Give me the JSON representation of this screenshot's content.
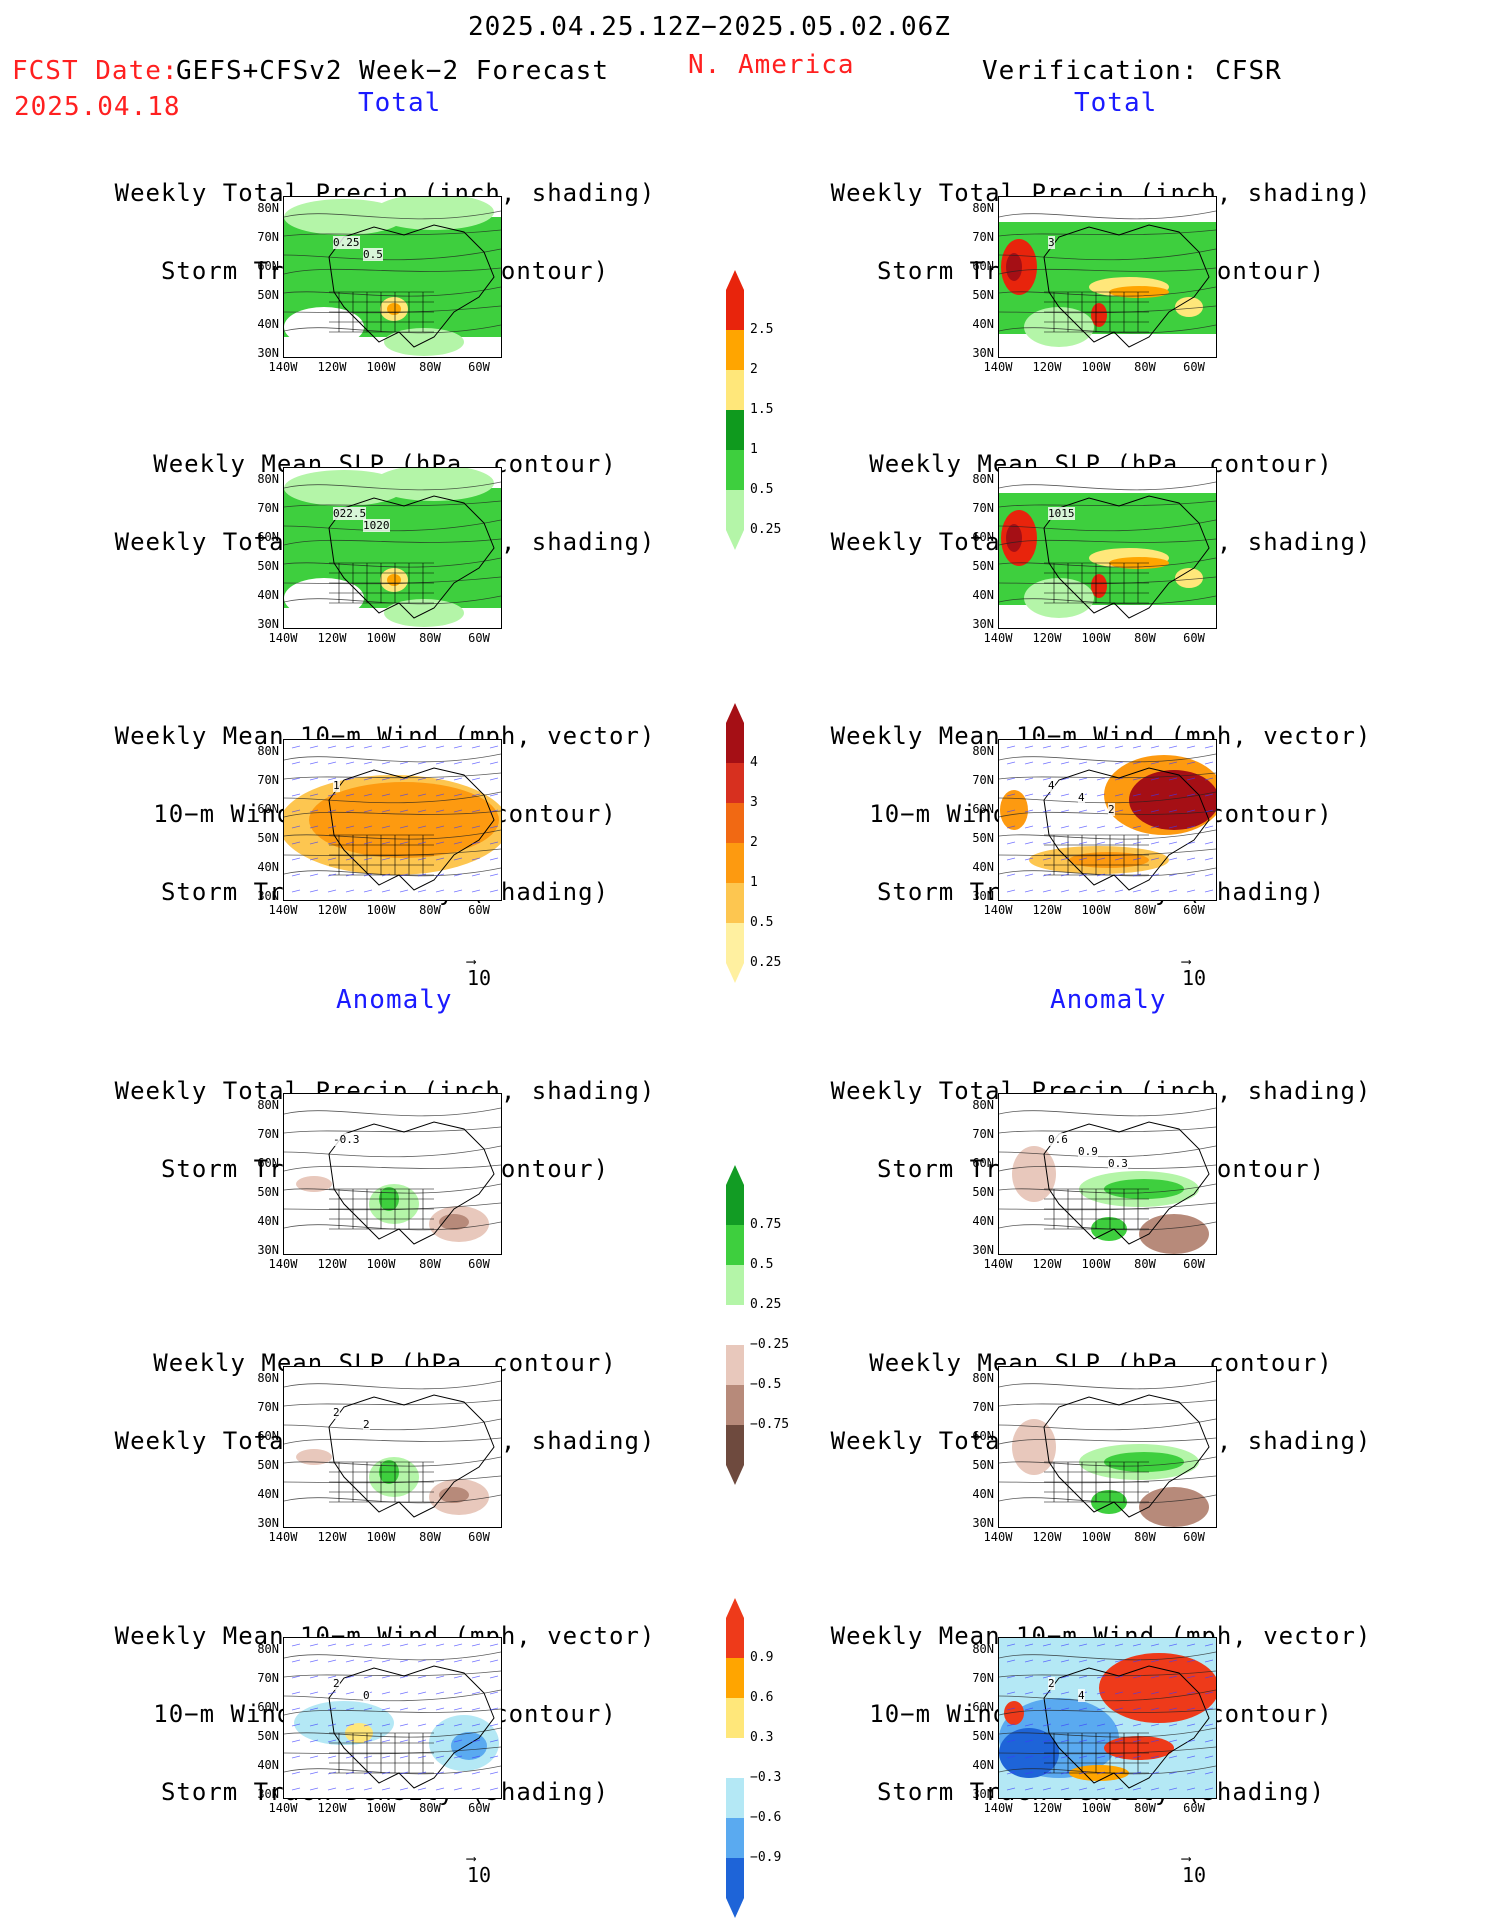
{
  "header": {
    "time_range": "2025.04.25.12Z−2025.05.02.06Z",
    "fcst_date_label": "FCST Date:",
    "model": "GEFS+CFSv2 Week−2 Forecast",
    "fcst_date": "2025.04.18",
    "region": "N. America",
    "verification": "Verification: CFSR"
  },
  "sections": {
    "total": "Total",
    "anomaly": "Anomaly"
  },
  "titles": {
    "precip_storm": [
      "Weekly Total Precip (inch, shading)",
      "Storm Track Density (contour)"
    ],
    "slp_precip": [
      "Weekly Mean SLP (hPa, contour)",
      "Weekly Total Precip (inch, shading)"
    ],
    "wind_storm": [
      "Weekly Mean 10−m Wind (mph, vector)",
      "10−m Wind Speed (mph, contour)",
      "Storm Track Density (shading)"
    ]
  },
  "axes": {
    "lat_ticks": [
      "80N",
      "70N",
      "60N",
      "50N",
      "40N",
      "30N"
    ],
    "lon_ticks": [
      "140W",
      "120W",
      "100W",
      "80W",
      "60W"
    ]
  },
  "contour_labels": {
    "p1_left": [
      "0.25",
      "0.5"
    ],
    "p1_right": [
      "3"
    ],
    "p2_left": [
      "022.5",
      "1020"
    ],
    "p2_right": [
      "1015"
    ],
    "p3_right": [
      "4",
      "4",
      "2"
    ],
    "p3_left": [
      "1"
    ],
    "p4_left": [
      "-0.3"
    ],
    "p4_right": [
      "0.6",
      "0.9",
      "0.3"
    ],
    "p5_left": [
      "2",
      "2"
    ],
    "p6_left": [
      "2",
      "0"
    ],
    "p6_right": [
      "2",
      "4"
    ]
  },
  "vector_reference": "10",
  "colorbars": {
    "precip_total": {
      "labels": [
        "2.5",
        "2",
        "1.5",
        "1",
        "0.5",
        "0.25"
      ],
      "colors": [
        "#e8240c",
        "#ffa500",
        "#ffe77a",
        "#0f9a1e",
        "#3ecf3e",
        "#b4f5a8"
      ]
    },
    "storm_total": {
      "labels": [
        "4",
        "3",
        "2",
        "1",
        "0.5",
        "0.25"
      ],
      "colors": [
        "#a50f15",
        "#d7301f",
        "#f16913",
        "#fd9a10",
        "#fdc650",
        "#fff0a0"
      ]
    },
    "precip_anom": {
      "labels": [
        "0.75",
        "0.5",
        "0.25",
        "−0.25",
        "−0.5",
        "−0.75"
      ],
      "colors": [
        "#129c24",
        "#3ecf3e",
        "#b4f5a8",
        "#ffffff",
        "#e8c8bc",
        "#b78a7a",
        "#6e4a3e"
      ]
    },
    "storm_anom": {
      "labels": [
        "0.9",
        "0.6",
        "0.3",
        "−0.3",
        "−0.6",
        "−0.9"
      ],
      "colors": [
        "#ee3a1a",
        "#ffa500",
        "#ffe77a",
        "#ffffff",
        "#b4e8f5",
        "#5aaaf0",
        "#1e64d8"
      ]
    }
  },
  "colors": {
    "red_header": "#ff2020",
    "blue_section": "#1a1aff",
    "vector_blue": "#3a3aff"
  }
}
